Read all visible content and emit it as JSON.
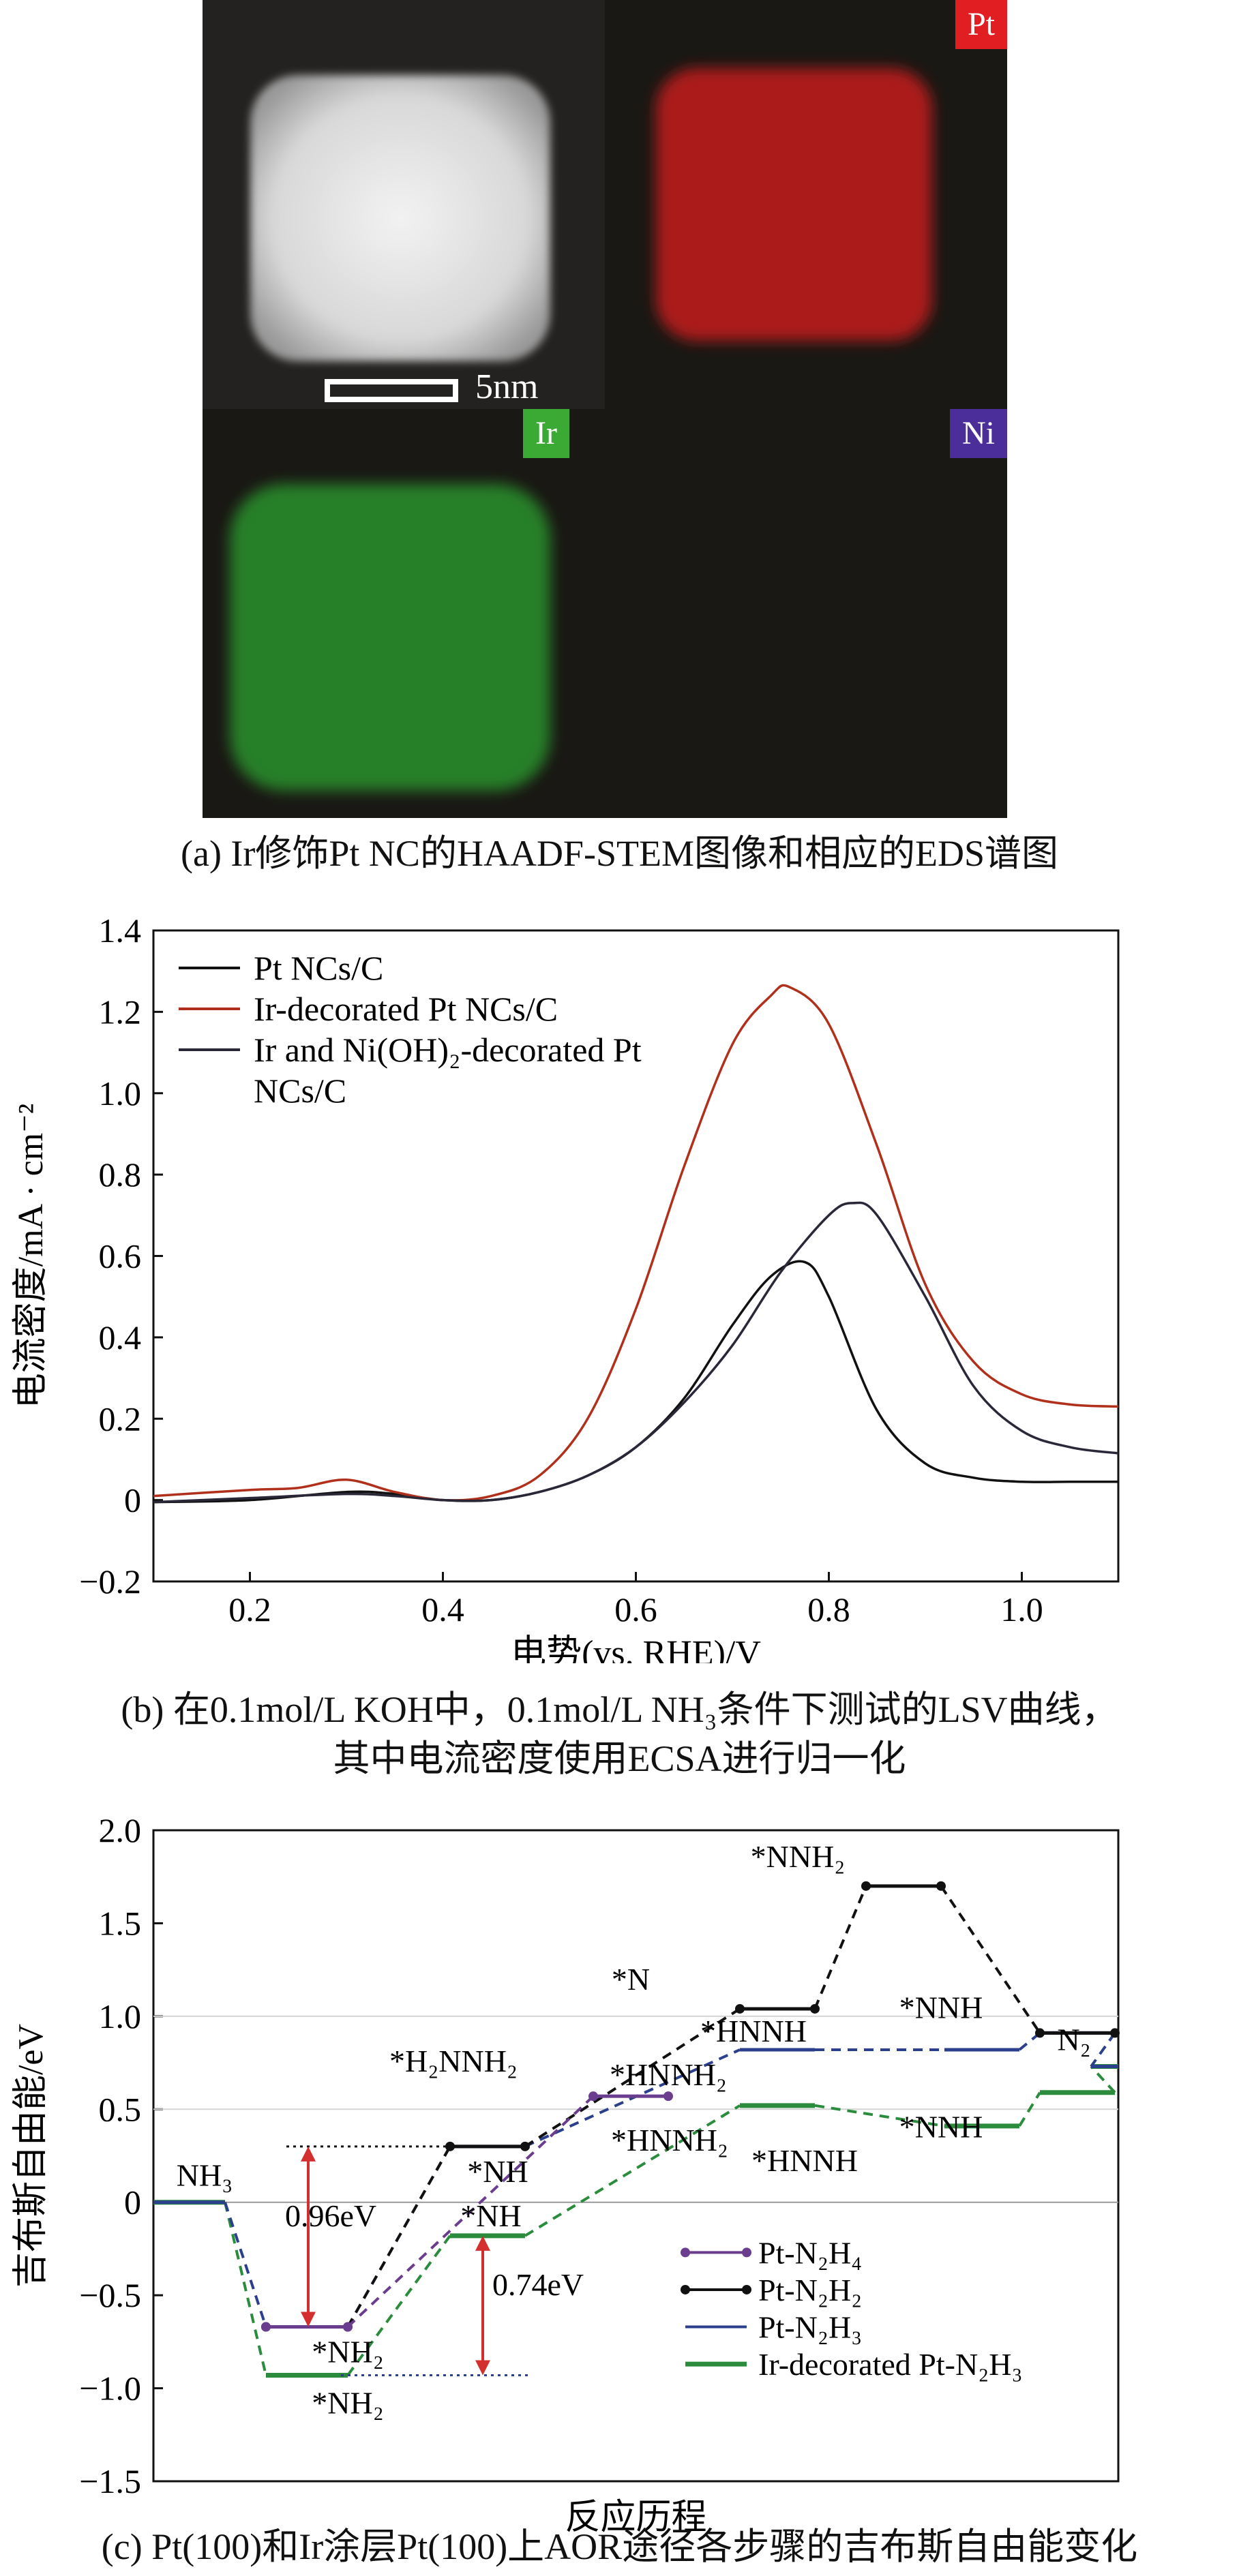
{
  "panel_a": {
    "labels": {
      "pt": "Pt",
      "ir": "Ir",
      "ni": "Ni"
    },
    "scalebar": "5nm",
    "caption": "(a) Ir修饰Pt NC的HAADF-STEM图像和相应的EDS谱图",
    "colors": {
      "pt": "#e11f22",
      "ir": "#3aaa35",
      "ni": "#4b2e9a",
      "bg": "#1a1814"
    }
  },
  "panel_b": {
    "caption_line1": "(b) 在0.1mol/L KOH中，0.1mol/L NH₃条件下测试的LSV曲线，",
    "caption_line2": "其中电流密度使用ECSA进行归一化"
  },
  "panel_c": {
    "caption": "(c) Pt(100)和Ir涂层Pt(100)上AOR途径各步骤的吉布斯自由能变化"
  },
  "chart_data": [
    {
      "type": "line",
      "xlabel": "电势(vs. RHE)/V",
      "ylabel": "电流密度/mA · cm⁻²",
      "xlim": [
        0.1,
        1.1
      ],
      "ylim": [
        -0.2,
        1.4
      ],
      "xticks": [
        "0.2",
        "0.4",
        "0.6",
        "0.8",
        "1.0"
      ],
      "yticks": [
        "−0.2",
        "0",
        "0.2",
        "0.4",
        "0.6",
        "0.8",
        "1.0",
        "1.2",
        "1.4"
      ],
      "legend_position": "top-left",
      "series": [
        {
          "name": "Pt NCs/C",
          "color": "#111111",
          "x": [
            0.1,
            0.2,
            0.3,
            0.35,
            0.4,
            0.45,
            0.5,
            0.55,
            0.6,
            0.65,
            0.7,
            0.74,
            0.775,
            0.8,
            0.85,
            0.9,
            0.95,
            1.0,
            1.05,
            1.1
          ],
          "y": [
            -0.005,
            0.0,
            0.02,
            0.015,
            0.0,
            0.0,
            0.02,
            0.06,
            0.13,
            0.25,
            0.43,
            0.55,
            0.585,
            0.5,
            0.22,
            0.09,
            0.055,
            0.045,
            0.045,
            0.045
          ]
        },
        {
          "name": "Ir-decorated Pt NCs/C",
          "color": "#b0301c",
          "x": [
            0.1,
            0.2,
            0.25,
            0.3,
            0.35,
            0.4,
            0.45,
            0.5,
            0.55,
            0.6,
            0.65,
            0.7,
            0.74,
            0.76,
            0.8,
            0.85,
            0.9,
            0.95,
            1.0,
            1.05,
            1.1
          ],
          "y": [
            0.01,
            0.025,
            0.03,
            0.05,
            0.02,
            0.0,
            0.01,
            0.06,
            0.2,
            0.47,
            0.82,
            1.12,
            1.24,
            1.26,
            1.17,
            0.87,
            0.53,
            0.34,
            0.26,
            0.235,
            0.23
          ]
        },
        {
          "name": "Ir and Ni(OH)₂-decorated Pt NCs/C",
          "color": "#2a2838",
          "x": [
            0.1,
            0.2,
            0.3,
            0.35,
            0.4,
            0.45,
            0.5,
            0.55,
            0.6,
            0.65,
            0.7,
            0.75,
            0.8,
            0.825,
            0.85,
            0.9,
            0.95,
            1.0,
            1.05,
            1.1
          ],
          "y": [
            -0.005,
            0.005,
            0.015,
            0.01,
            0.0,
            0.0,
            0.02,
            0.06,
            0.13,
            0.24,
            0.38,
            0.56,
            0.7,
            0.73,
            0.7,
            0.5,
            0.28,
            0.17,
            0.13,
            0.115
          ]
        }
      ]
    },
    {
      "type": "line",
      "subtype": "energy-profile",
      "xlabel": "反应历程",
      "ylabel": "吉布斯自由能/eV",
      "ylim": [
        -1.5,
        2.0
      ],
      "yticks": [
        "−1.5",
        "−1.0",
        "−0.5",
        "0",
        "0.5",
        "1.0",
        "1.5",
        "2.0"
      ],
      "legend_position": "bottom-right",
      "series": [
        {
          "name": "Pt-N₂H₄",
          "color": "#6a3d8f",
          "steps": [
            1,
            3
          ],
          "y": [
            -0.67,
            0.57
          ]
        },
        {
          "name": "Pt-N₂H₂",
          "color": "#111111",
          "steps": [
            1,
            2,
            4,
            5,
            7
          ],
          "y": [
            -0.67,
            0.3,
            1.04,
            1.7,
            0.91
          ]
        },
        {
          "name": "Pt-N₂H₃",
          "color": "#2b3f8c",
          "steps": [
            0,
            1,
            2,
            4,
            6,
            7,
            8
          ],
          "y": [
            0.0,
            -0.67,
            0.3,
            0.82,
            0.82,
            0.91,
            0.73
          ]
        },
        {
          "name": "Ir-decorated Pt-N₂H₃",
          "color": "#2a8c3c",
          "steps": [
            0,
            1,
            2,
            4,
            6,
            7,
            8
          ],
          "y": [
            0.0,
            -0.93,
            -0.18,
            0.52,
            0.41,
            0.59,
            0.73
          ]
        }
      ],
      "labels": {
        "nh3": "NH₃",
        "n2": "N₂",
        "h2nnh2": "*H₂NNH₂",
        "nnh2": "*NNH₂",
        "n": "*N",
        "hnnh_top": "*HNNH",
        "nnh_top": "*NNH",
        "hnnh2_top": "*HNNH₂",
        "nh_top": "*NH",
        "hnnh2_bot": "*HNNH₂",
        "hnnh_bot": "*HNNH",
        "nnh_bot": "*NNH",
        "nh2_top": "*NH₂",
        "nh2_bot": "*NH₂",
        "nh_bot": "*NH",
        "gap1": "0.96eV",
        "gap2": "0.74eV"
      }
    }
  ]
}
